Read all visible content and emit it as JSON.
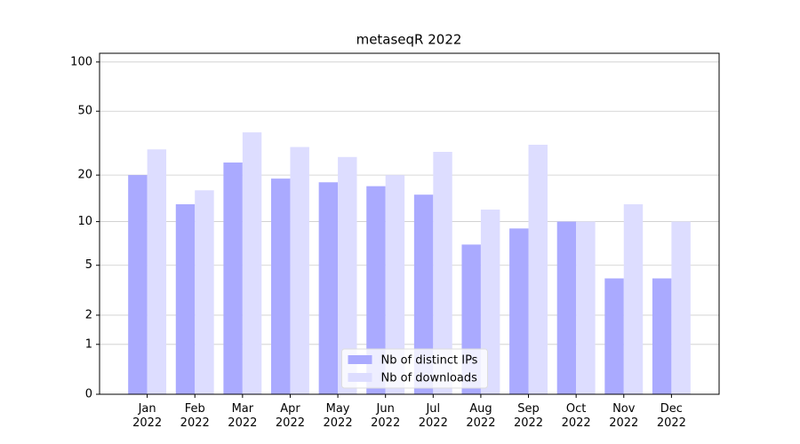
{
  "chart_data": {
    "type": "bar",
    "title": "metaseqR 2022",
    "categories": [
      "Jan\n2022",
      "Feb\n2022",
      "Mar\n2022",
      "Apr\n2022",
      "May\n2022",
      "Jun\n2022",
      "Jul\n2022",
      "Aug\n2022",
      "Sep\n2022",
      "Oct\n2022",
      "Nov\n2022",
      "Dec\n2022"
    ],
    "series": [
      {
        "name": "Nb of distinct IPs",
        "color": "#aaaaff",
        "values": [
          20,
          13,
          24,
          19,
          18,
          17,
          15,
          7,
          9,
          10,
          4,
          4
        ]
      },
      {
        "name": "Nb of downloads",
        "color": "#ddddff",
        "values": [
          29,
          16,
          37,
          30,
          26,
          20,
          28,
          12,
          31,
          10,
          13,
          10
        ]
      }
    ],
    "yscale": "log1p",
    "ylim": [
      0,
      113
    ],
    "yticks": [
      0,
      1,
      2,
      5,
      10,
      20,
      50,
      100
    ],
    "grid": true,
    "legend": "lower center"
  }
}
